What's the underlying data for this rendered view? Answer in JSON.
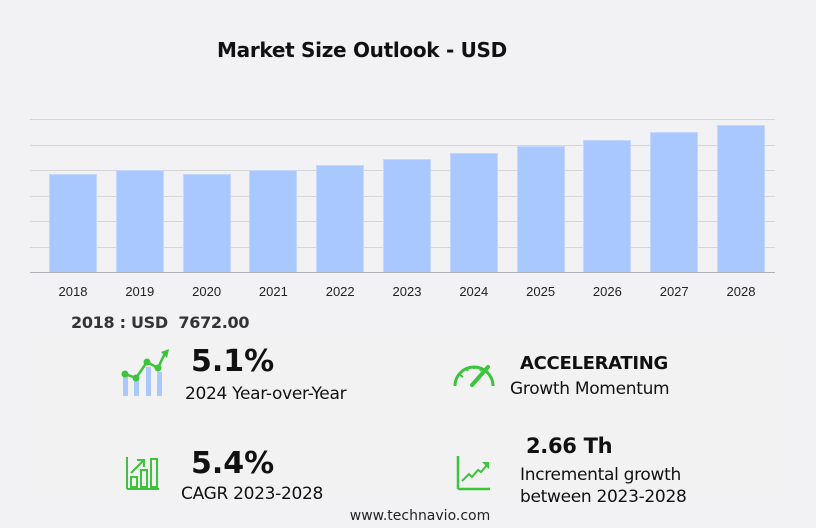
{
  "title": "Market Size Outlook  - USD",
  "chart_data": {
    "type": "bar",
    "title": "Market Size Outlook - USD",
    "xlabel": "",
    "ylabel": "",
    "categories": [
      "2018",
      "2019",
      "2020",
      "2021",
      "2022",
      "2023",
      "2024",
      "2025",
      "2026",
      "2027",
      "2028"
    ],
    "values": [
      7672,
      8000,
      7672,
      8000,
      8400,
      8850,
      9300,
      9850,
      10350,
      10950,
      11510
    ],
    "ylim": [
      0,
      12000
    ],
    "grid": true,
    "y_tick_labels_visible": false,
    "bar_color": "#a8c8ff"
  },
  "base_value": {
    "year": "2018",
    "label": "2018 : USD  7672.00"
  },
  "kpis": {
    "yoy": {
      "value": "5.1%",
      "label": "2024 Year-over-Year",
      "icon": "line-bar-growth-icon"
    },
    "momentum": {
      "value": "ACCELERATING",
      "label": "Growth Momentum",
      "icon": "speedometer-icon"
    },
    "cagr": {
      "value": "5.4%",
      "label": "CAGR 2023-2028",
      "icon": "bar-chart-arrow-icon"
    },
    "incremental": {
      "value": "2.66 Th",
      "label_line1": "Incremental growth",
      "label_line2": "between 2023-2028",
      "icon": "trend-up-icon"
    }
  },
  "colors": {
    "bar": "#a8c8ff",
    "accent_green": "#3cc43c",
    "background": "#f2f2f4"
  },
  "footer": "www.technavio.com"
}
